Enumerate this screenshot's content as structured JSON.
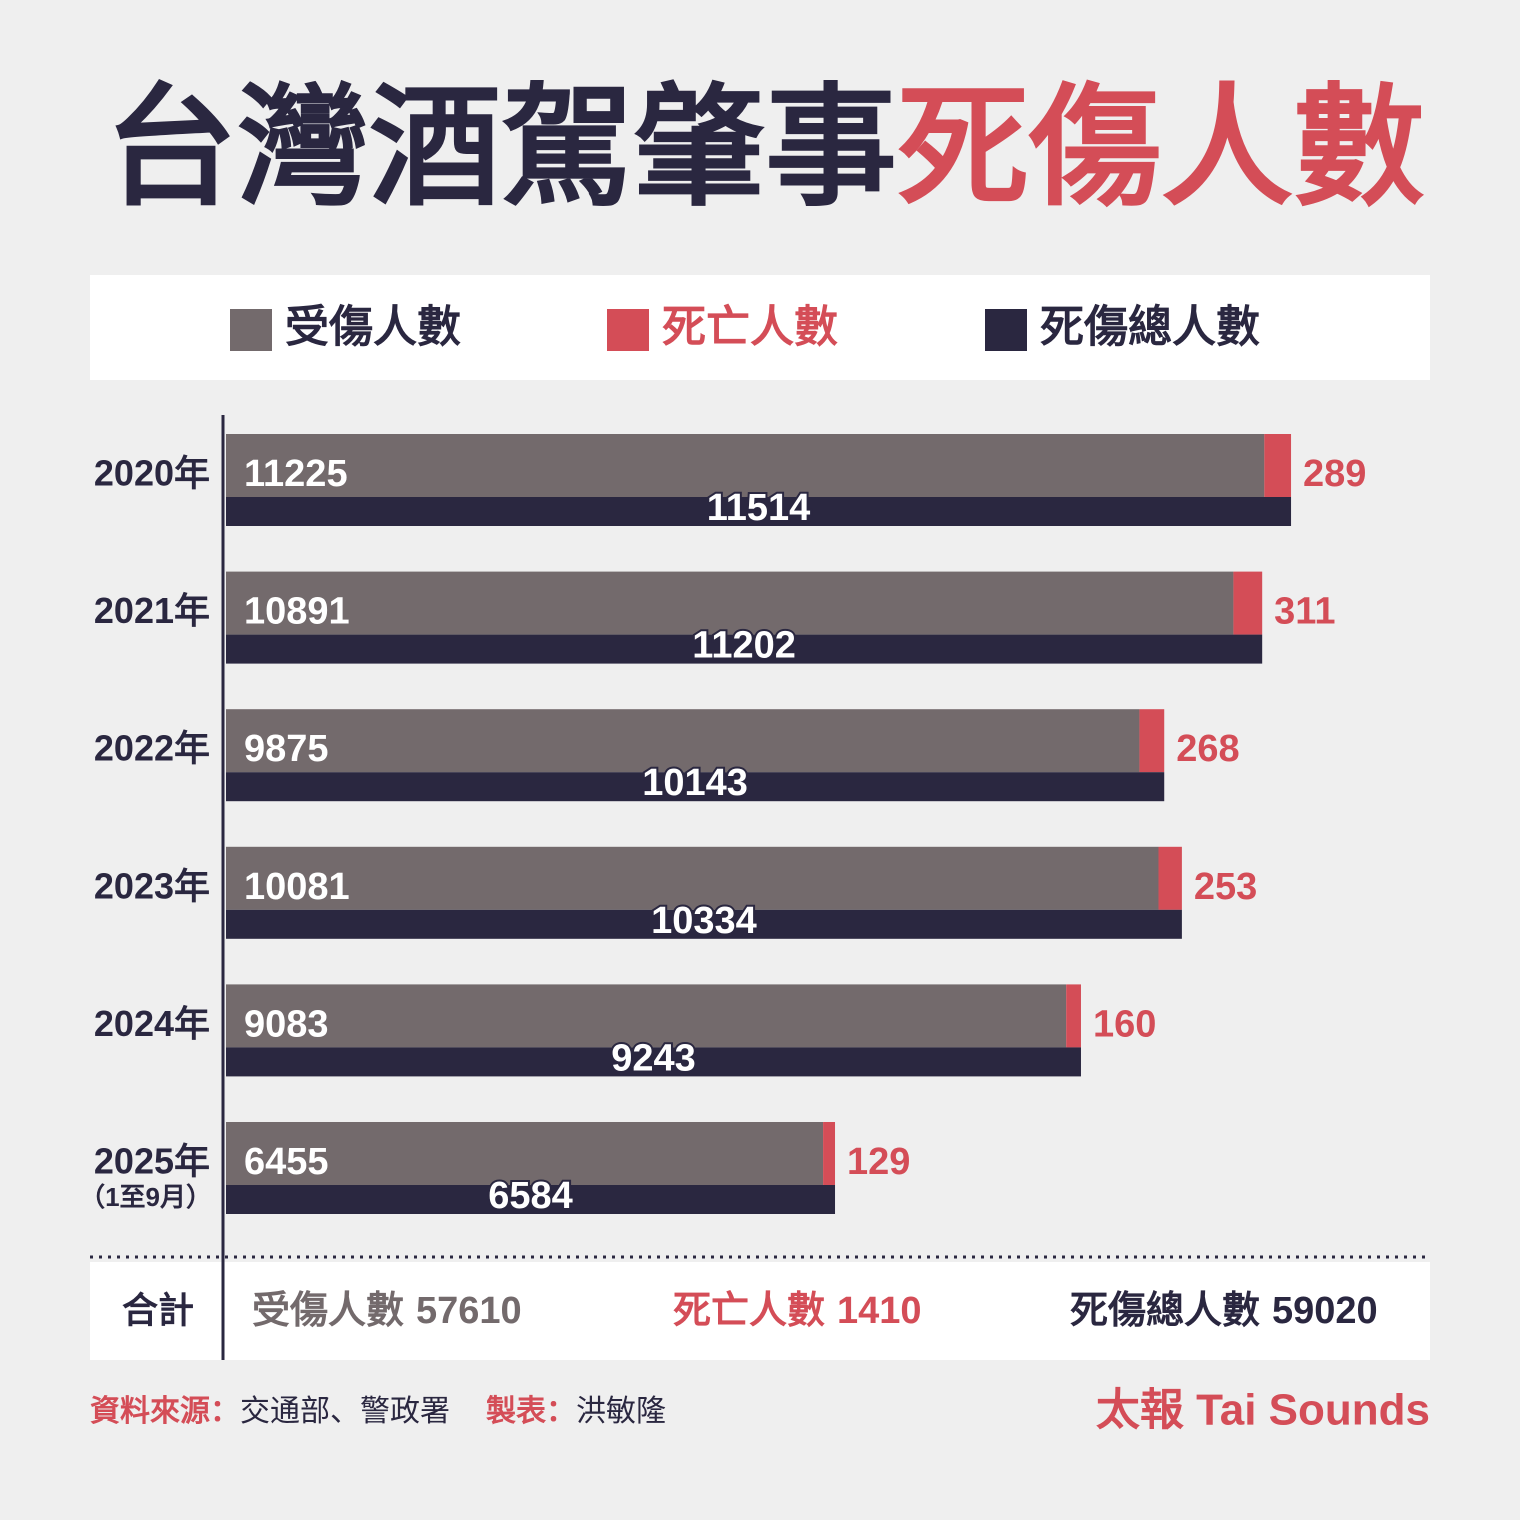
{
  "chart_data": {
    "type": "bar",
    "title": "台灣酒駕肇事",
    "title_highlight": "死傷人數",
    "categories": [
      "2020年",
      "2021年",
      "2022年",
      "2023年",
      "2024年",
      "2025年"
    ],
    "category_note": {
      "index": 5,
      "text": "（1至9月）"
    },
    "series": [
      {
        "name": "受傷人數",
        "color": "#736a6c",
        "values": [
          11225,
          10891,
          9875,
          10081,
          9083,
          6455
        ]
      },
      {
        "name": "死亡人數",
        "color": "#d44d57",
        "values": [
          289,
          311,
          268,
          253,
          160,
          129
        ]
      },
      {
        "name": "死傷總人數",
        "color": "#2a2740",
        "values": [
          11514,
          11202,
          10143,
          10334,
          9243,
          6584
        ]
      }
    ],
    "xlim": [
      0,
      12000
    ],
    "totals": {
      "label": "合計",
      "items": [
        {
          "name": "受傷人數",
          "value": 57610
        },
        {
          "name": "死亡人數",
          "value": 1410
        },
        {
          "name": "死傷總人數",
          "value": 59020
        }
      ]
    },
    "footer": {
      "source_label": "資料來源：",
      "source": "交通部、警政署",
      "maker_label": "製表：",
      "maker": "洪敏隆",
      "brand": "太報 Tai Sounds"
    }
  }
}
